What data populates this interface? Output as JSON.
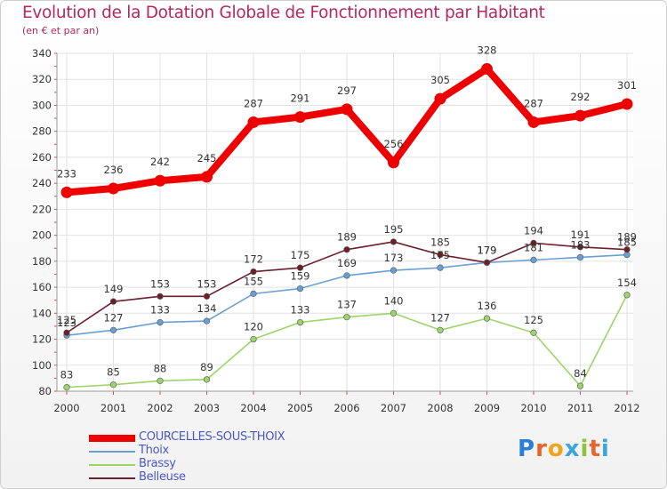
{
  "header": {
    "title": "Evolution de la Dotation Globale de Fonctionnement par Habitant",
    "subtitle": "(en € et par an)"
  },
  "logo": {
    "text": "Proxiti",
    "colors": [
      "#2a7fd4",
      "#e8642c",
      "#f2a31c",
      "#3aa6dd",
      "#8fc13e",
      "#e8642c",
      "#3aa6dd"
    ]
  },
  "chart_data": {
    "type": "line",
    "title": "Evolution de la Dotation Globale de Fonctionnement par Habitant",
    "subtitle": "(en € et par an)",
    "xlabel": "",
    "ylabel": "",
    "x": [
      "2000",
      "2001",
      "2002",
      "2003",
      "2004",
      "2005",
      "2006",
      "2007",
      "2008",
      "2009",
      "2010",
      "2011",
      "2012"
    ],
    "ylim": [
      80,
      340
    ],
    "yticks": [
      "80",
      "100",
      "120",
      "140",
      "160",
      "180",
      "200",
      "220",
      "240",
      "260",
      "280",
      "300",
      "320",
      "340"
    ],
    "grid": true,
    "legend_position": "bottom-left",
    "series": [
      {
        "name": "COURCELLES-SOUS-THOIX",
        "color": "#ee0000",
        "values": [
          233,
          236,
          242,
          245,
          287,
          291,
          297,
          256,
          305,
          328,
          287,
          292,
          301
        ],
        "labels": [
          "233",
          "236",
          "242",
          "245",
          "287",
          "291",
          "297",
          "256",
          "305",
          "328",
          "287",
          "292",
          "301"
        ]
      },
      {
        "name": "Thoix",
        "color": "#6a9fd4",
        "values": [
          123,
          127,
          133,
          134,
          155,
          159,
          169,
          173,
          175,
          179,
          181,
          183,
          185
        ],
        "labels": [
          "123",
          "127",
          "133",
          "134",
          "155",
          "159",
          "169",
          "173",
          "175",
          "179",
          "181",
          "183",
          "185"
        ]
      },
      {
        "name": "Brassy",
        "color": "#9cd46a",
        "values": [
          83,
          85,
          88,
          89,
          120,
          133,
          137,
          140,
          127,
          136,
          125,
          84,
          154
        ],
        "labels": [
          "83",
          "85",
          "88",
          "89",
          "120",
          "133",
          "137",
          "140",
          "127",
          "136",
          "125",
          "84",
          "154"
        ]
      },
      {
        "name": "Belleuse",
        "color": "#6b1f2a",
        "values": [
          125,
          149,
          153,
          153,
          172,
          175,
          189,
          195,
          185,
          179,
          194,
          191,
          189
        ],
        "labels": [
          "125",
          "149",
          "153",
          "153",
          "172",
          "175",
          "189",
          "195",
          "185",
          "179",
          "194",
          "191",
          "189"
        ]
      }
    ]
  }
}
